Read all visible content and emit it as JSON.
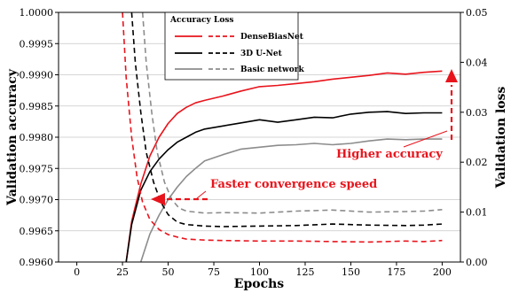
{
  "chart_data": {
    "type": "line",
    "xlabel": "Epochs",
    "ylabel_left": "Validation accuracy",
    "ylabel_right": "Validation loss",
    "xlim": [
      -10,
      210
    ],
    "ylim_left": [
      0.996,
      1.0
    ],
    "ylim_right": [
      0.0,
      0.05
    ],
    "x_ticks": [
      0,
      25,
      50,
      75,
      100,
      125,
      150,
      175,
      200
    ],
    "y_left_ticks": [
      "0.9960",
      "0.9965",
      "0.9970",
      "0.9975",
      "0.9980",
      "0.9985",
      "0.9990",
      "0.9995",
      "1.0000"
    ],
    "y_right_ticks": [
      "0.00",
      "0.01",
      "0.02",
      "0.03",
      "0.04",
      "0.05"
    ],
    "grid": "horizontal",
    "legend": {
      "placement": "top-center",
      "header_accuracy": "Accuracy",
      "header_loss": "Loss",
      "entries": [
        "DenseBiasNet",
        "3D U-Net",
        "Basic network"
      ]
    },
    "annotations": {
      "higher_accuracy": "Higher accuracy",
      "faster_convergence": "Faster convergence speed"
    },
    "series": [
      {
        "name": "DenseBiasNet",
        "metric": "accuracy",
        "axis": "left",
        "color": "#e8141c",
        "dash": "solid",
        "x": [
          27,
          30,
          35,
          40,
          45,
          50,
          55,
          60,
          65,
          70,
          80,
          90,
          100,
          110,
          120,
          130,
          140,
          150,
          160,
          170,
          180,
          190,
          200
        ],
        "y": [
          0.996,
          0.99665,
          0.99725,
          0.9977,
          0.998,
          0.99822,
          0.99838,
          0.99848,
          0.99855,
          0.99859,
          0.99866,
          0.99874,
          0.99881,
          0.99883,
          0.99886,
          0.99889,
          0.99893,
          0.99896,
          0.99899,
          0.99903,
          0.99901,
          0.99904,
          0.99906
        ]
      },
      {
        "name": "3D U-Net",
        "metric": "accuracy",
        "axis": "left",
        "color": "#000000",
        "dash": "solid",
        "x": [
          27,
          30,
          35,
          40,
          45,
          50,
          55,
          60,
          65,
          70,
          80,
          90,
          100,
          110,
          120,
          130,
          140,
          150,
          160,
          170,
          180,
          190,
          200
        ],
        "y": [
          0.996,
          0.9966,
          0.99715,
          0.99745,
          0.99765,
          0.9978,
          0.99792,
          0.998,
          0.99808,
          0.99813,
          0.99818,
          0.99823,
          0.99828,
          0.99824,
          0.99828,
          0.99832,
          0.99831,
          0.99837,
          0.9984,
          0.99841,
          0.99838,
          0.99839,
          0.99839
        ]
      },
      {
        "name": "Basic network",
        "metric": "accuracy",
        "axis": "left",
        "color": "#8c8c8c",
        "dash": "solid",
        "x": [
          35,
          40,
          45,
          50,
          55,
          60,
          65,
          70,
          80,
          90,
          100,
          110,
          120,
          130,
          140,
          150,
          160,
          170,
          180,
          190,
          200
        ],
        "y": [
          0.996,
          0.99645,
          0.99675,
          0.997,
          0.9972,
          0.99737,
          0.9975,
          0.99762,
          0.99772,
          0.99781,
          0.99784,
          0.99787,
          0.99788,
          0.9979,
          0.99788,
          0.9979,
          0.99794,
          0.99797,
          0.99796,
          0.99797,
          0.99797
        ]
      },
      {
        "name": "DenseBiasNet",
        "metric": "loss",
        "axis": "right",
        "color": "#e8141c",
        "dash": "dashed",
        "x": [
          25,
          27,
          30,
          33,
          36,
          40,
          45,
          50,
          55,
          60,
          70,
          80,
          100,
          120,
          140,
          160,
          180,
          190,
          200
        ],
        "y": [
          0.05,
          0.037,
          0.025,
          0.017,
          0.012,
          0.0085,
          0.0065,
          0.0055,
          0.005,
          0.0046,
          0.0044,
          0.0043,
          0.0042,
          0.0042,
          0.0041,
          0.004,
          0.0042,
          0.0041,
          0.0043
        ]
      },
      {
        "name": "3D U-Net",
        "metric": "loss",
        "axis": "right",
        "color": "#000000",
        "dash": "dashed",
        "x": [
          30,
          32,
          35,
          38,
          42,
          46,
          50,
          55,
          60,
          70,
          80,
          100,
          120,
          140,
          160,
          180,
          190,
          200
        ],
        "y": [
          0.05,
          0.04,
          0.03,
          0.022,
          0.016,
          0.012,
          0.0095,
          0.008,
          0.0075,
          0.0072,
          0.0071,
          0.0072,
          0.0073,
          0.0076,
          0.0074,
          0.0073,
          0.0074,
          0.0076
        ]
      },
      {
        "name": "Basic network",
        "metric": "loss",
        "axis": "right",
        "color": "#8c8c8c",
        "dash": "dashed",
        "x": [
          36,
          38,
          41,
          44,
          48,
          52,
          56,
          60,
          70,
          80,
          100,
          120,
          140,
          160,
          180,
          190,
          200
        ],
        "y": [
          0.05,
          0.04,
          0.03,
          0.022,
          0.016,
          0.0125,
          0.0108,
          0.0102,
          0.0098,
          0.0099,
          0.0098,
          0.0102,
          0.0104,
          0.01,
          0.0101,
          0.0102,
          0.0105
        ]
      }
    ]
  }
}
